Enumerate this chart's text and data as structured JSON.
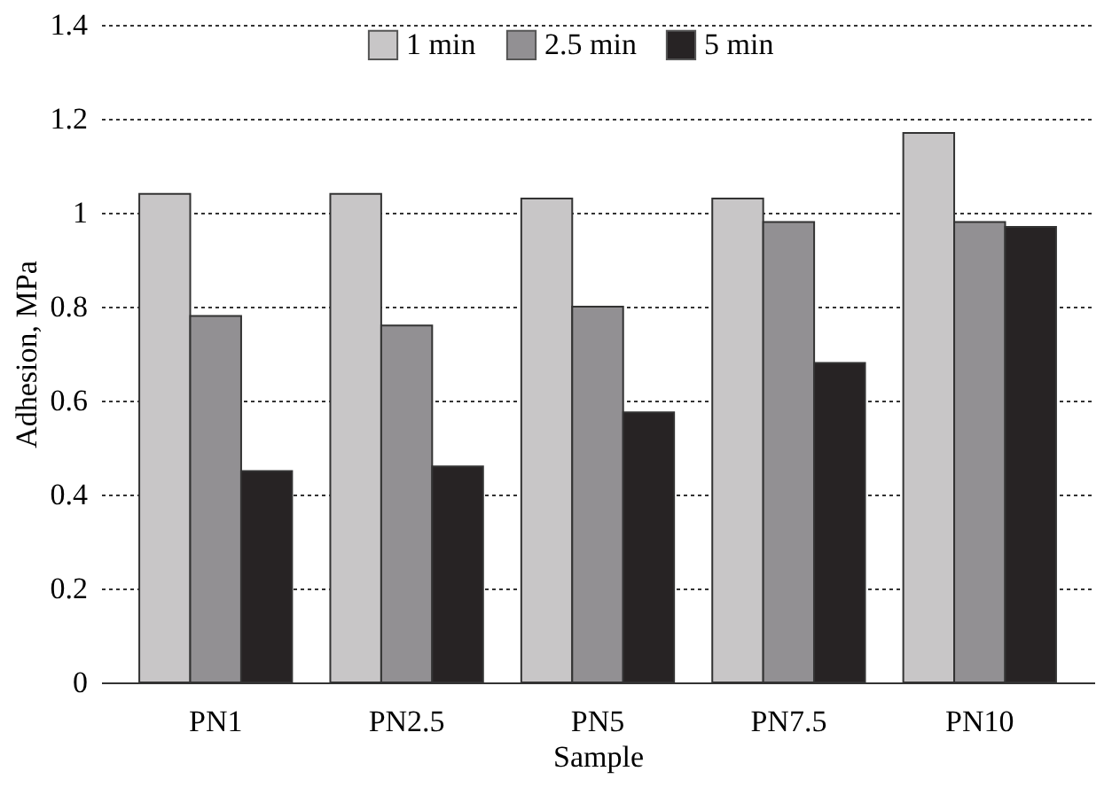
{
  "chart_data": {
    "type": "bar",
    "xlabel": "Sample",
    "ylabel": "Adhesion, MPa",
    "categories": [
      "PN1",
      "PN2.5",
      "PN5",
      "PN7.5",
      "PN10"
    ],
    "series": [
      {
        "name": "1 min",
        "color": "#c8c6c7",
        "values": [
          1.04,
          1.04,
          1.03,
          1.03,
          1.17
        ]
      },
      {
        "name": "2.5 min",
        "color": "#929093",
        "values": [
          0.78,
          0.76,
          0.8,
          0.98,
          0.98
        ]
      },
      {
        "name": "5 min",
        "color": "#272324",
        "values": [
          0.45,
          0.46,
          0.575,
          0.68,
          0.97
        ]
      }
    ],
    "ylim": [
      0,
      1.4
    ],
    "yticks": [
      {
        "value": 0,
        "label": "0"
      },
      0.2,
      0.4,
      0.6,
      0.8,
      {
        "value": 1,
        "label": "1"
      },
      1.2,
      1.4
    ],
    "grid": "y",
    "legend": "top"
  }
}
